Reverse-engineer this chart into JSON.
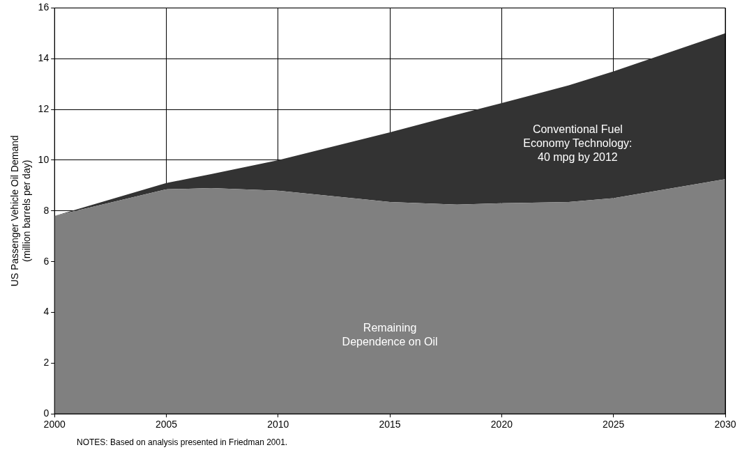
{
  "chart_data": {
    "type": "area",
    "stacked": true,
    "ylabel": "US Passenger Vehicle Oil Demand (million barrels per day)",
    "x": [
      2000,
      2005,
      2007,
      2010,
      2015,
      2018,
      2020,
      2023,
      2025,
      2030
    ],
    "series": [
      {
        "name": "Remaining Dependence on Oil",
        "color": "#808080",
        "values": [
          7.8,
          8.85,
          8.9,
          8.8,
          8.35,
          8.25,
          8.3,
          8.35,
          8.5,
          9.25
        ]
      },
      {
        "name": "Conventional Fuel Economy Technology: 40 mpg by 2012",
        "color": "#333333",
        "values": [
          0,
          0.25,
          0.55,
          1.2,
          2.75,
          3.55,
          3.95,
          4.6,
          5.0,
          5.75
        ]
      }
    ],
    "xlim": [
      2000,
      2030
    ],
    "xticks": [
      2000,
      2005,
      2010,
      2015,
      2020,
      2025,
      2030
    ],
    "ylim": [
      0,
      16
    ],
    "yticks": [
      0,
      2,
      4,
      6,
      8,
      10,
      12,
      14,
      16
    ],
    "grid": true,
    "legend": false,
    "annotations": [
      "NOTES: Based on analysis presented in Friedman 2001."
    ]
  }
}
